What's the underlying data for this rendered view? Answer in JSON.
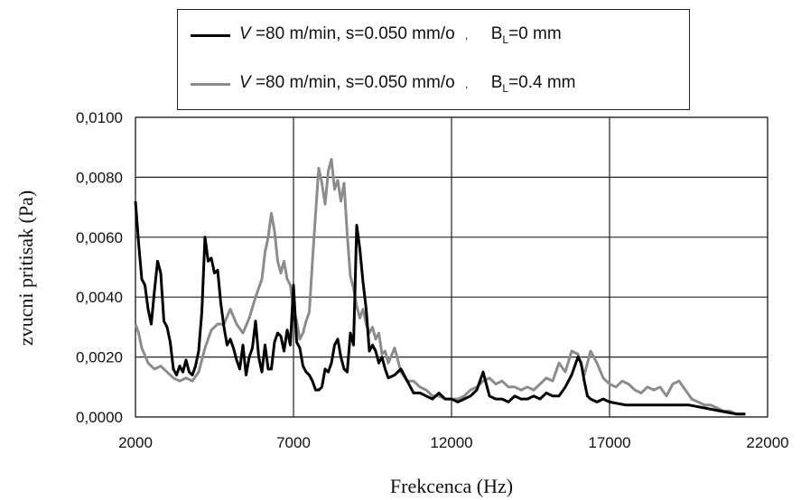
{
  "chart_data": {
    "type": "line",
    "xlabel": "Frekcenca (Hz)",
    "ylabel": "zvucni pritisak (Pa)",
    "xlim": [
      2000,
      22000
    ],
    "ylim": [
      0,
      0.01
    ],
    "x_ticks": [
      2000,
      7000,
      12000,
      17000,
      22000
    ],
    "x_tick_labels": [
      "2000",
      "7000",
      "12000",
      "17000",
      "22000"
    ],
    "y_ticks": [
      0,
      0.002,
      0.004,
      0.006,
      0.008,
      0.01
    ],
    "y_tick_labels": [
      "0,0000",
      "0,0020",
      "0,0040",
      "0,0060",
      "0,0080",
      "0,0100"
    ],
    "grid": "vertical and horizontal",
    "legend_position": "top",
    "series": [
      {
        "name": "V =80 m/min, s=0.050 mm/o , BL=0 mm",
        "color": "#000000",
        "x": [
          2000,
          2100,
          2200,
          2300,
          2400,
          2500,
          2600,
          2700,
          2800,
          2900,
          3000,
          3100,
          3200,
          3300,
          3400,
          3500,
          3600,
          3700,
          3800,
          3900,
          4000,
          4100,
          4200,
          4300,
          4400,
          4500,
          4600,
          4700,
          4800,
          4900,
          5000,
          5100,
          5200,
          5300,
          5400,
          5500,
          5600,
          5700,
          5800,
          5900,
          6000,
          6100,
          6200,
          6300,
          6400,
          6500,
          6600,
          6700,
          6800,
          6900,
          7000,
          7100,
          7200,
          7300,
          7400,
          7500,
          7600,
          7700,
          7800,
          7900,
          8000,
          8100,
          8200,
          8300,
          8400,
          8500,
          8600,
          8700,
          8800,
          8900,
          9000,
          9100,
          9200,
          9300,
          9400,
          9500,
          9600,
          9700,
          9800,
          9900,
          10000,
          10200,
          10400,
          10600,
          10800,
          11000,
          11200,
          11400,
          11600,
          11800,
          12000,
          12200,
          12400,
          12600,
          12800,
          13000,
          13200,
          13400,
          13600,
          13800,
          14000,
          14200,
          14400,
          14600,
          14800,
          15000,
          15200,
          15400,
          15600,
          15800,
          16000,
          16100,
          16200,
          16300,
          16400,
          16600,
          16800,
          17000,
          17500,
          18000,
          18500,
          19000,
          19500,
          20000,
          20500,
          21000,
          21300
        ],
        "y": [
          0.0072,
          0.0058,
          0.0046,
          0.0044,
          0.0036,
          0.0031,
          0.0042,
          0.0052,
          0.0048,
          0.0032,
          0.003,
          0.0025,
          0.0016,
          0.0014,
          0.0017,
          0.0015,
          0.0019,
          0.0015,
          0.0014,
          0.0017,
          0.0022,
          0.0035,
          0.006,
          0.0052,
          0.0053,
          0.0048,
          0.0049,
          0.0038,
          0.003,
          0.0024,
          0.0026,
          0.0023,
          0.0019,
          0.0016,
          0.0024,
          0.0014,
          0.002,
          0.0023,
          0.0032,
          0.002,
          0.0015,
          0.0024,
          0.0016,
          0.0016,
          0.0025,
          0.0028,
          0.0027,
          0.0022,
          0.0029,
          0.0024,
          0.0044,
          0.0025,
          0.0023,
          0.0017,
          0.0015,
          0.0014,
          0.0012,
          0.0009,
          0.0009,
          0.001,
          0.0016,
          0.0015,
          0.0018,
          0.0024,
          0.0026,
          0.002,
          0.0016,
          0.0015,
          0.0028,
          0.0024,
          0.0064,
          0.0056,
          0.0045,
          0.0036,
          0.0022,
          0.0024,
          0.0022,
          0.0018,
          0.002,
          0.0016,
          0.0013,
          0.0014,
          0.0016,
          0.0012,
          0.0008,
          0.0008,
          0.0007,
          0.0006,
          0.0008,
          0.0006,
          0.0006,
          0.0005,
          0.0006,
          0.0007,
          0.0009,
          0.0015,
          0.0007,
          0.0006,
          0.0006,
          0.0005,
          0.0007,
          0.0006,
          0.0006,
          0.0007,
          0.0006,
          0.0008,
          0.0007,
          0.0007,
          0.001,
          0.0014,
          0.002,
          0.0018,
          0.0012,
          0.0007,
          0.0006,
          0.0005,
          0.0006,
          0.0005,
          0.0004,
          0.0004,
          0.0004,
          0.0004,
          0.0004,
          0.0003,
          0.0002,
          0.0001,
          0.0001
        ]
      },
      {
        "name": "V =80 m/min, s=0.050 mm/o , BL=0.4 mm",
        "color": "#8c8c8c",
        "x": [
          2000,
          2100,
          2200,
          2400,
          2600,
          2800,
          3000,
          3200,
          3400,
          3600,
          3800,
          4000,
          4200,
          4400,
          4600,
          4800,
          5000,
          5200,
          5400,
          5600,
          5800,
          6000,
          6100,
          6200,
          6300,
          6400,
          6500,
          6600,
          6700,
          6800,
          6900,
          7000,
          7100,
          7200,
          7300,
          7400,
          7500,
          7600,
          7700,
          7800,
          7900,
          8000,
          8100,
          8200,
          8300,
          8400,
          8500,
          8600,
          8700,
          8800,
          8900,
          9000,
          9100,
          9200,
          9300,
          9400,
          9500,
          9600,
          9700,
          9800,
          9900,
          10000,
          10200,
          10400,
          10600,
          10800,
          11000,
          11200,
          11400,
          11600,
          11800,
          12000,
          12200,
          12400,
          12600,
          12800,
          13000,
          13200,
          13400,
          13600,
          13800,
          14000,
          14200,
          14400,
          14600,
          14800,
          15000,
          15200,
          15400,
          15600,
          15800,
          16000,
          16200,
          16400,
          16600,
          16800,
          17000,
          17200,
          17400,
          17600,
          17800,
          18000,
          18200,
          18400,
          18600,
          18800,
          19000,
          19200,
          19400,
          19600,
          19800,
          20000,
          20200,
          20400,
          20600,
          20800,
          21000,
          21300
        ],
        "y": [
          0.0031,
          0.0028,
          0.0023,
          0.0018,
          0.0016,
          0.0017,
          0.0015,
          0.0013,
          0.0012,
          0.0013,
          0.0012,
          0.0015,
          0.0023,
          0.0029,
          0.0031,
          0.0031,
          0.0036,
          0.0031,
          0.0028,
          0.0033,
          0.004,
          0.0046,
          0.0055,
          0.006,
          0.0068,
          0.0062,
          0.0052,
          0.0048,
          0.0052,
          0.0046,
          0.0044,
          0.0036,
          0.0032,
          0.0026,
          0.0028,
          0.0032,
          0.0035,
          0.0052,
          0.0068,
          0.0083,
          0.0078,
          0.0071,
          0.0082,
          0.0086,
          0.0076,
          0.0079,
          0.0072,
          0.0078,
          0.0061,
          0.0047,
          0.0043,
          0.0037,
          0.0033,
          0.0036,
          0.0031,
          0.0028,
          0.003,
          0.0026,
          0.0028,
          0.0021,
          0.0022,
          0.0018,
          0.0023,
          0.0015,
          0.0012,
          0.0012,
          0.001,
          0.0009,
          0.0007,
          0.0007,
          0.0006,
          0.0006,
          0.0006,
          0.0007,
          0.0009,
          0.001,
          0.0012,
          0.0013,
          0.0011,
          0.0012,
          0.001,
          0.001,
          0.0009,
          0.001,
          0.0009,
          0.0011,
          0.0013,
          0.0012,
          0.0018,
          0.0015,
          0.0022,
          0.0021,
          0.0014,
          0.0022,
          0.0018,
          0.0013,
          0.0011,
          0.001,
          0.0012,
          0.0011,
          0.0009,
          0.0008,
          0.001,
          0.0009,
          0.001,
          0.0007,
          0.0011,
          0.0012,
          0.0009,
          0.0006,
          0.0005,
          0.0004,
          0.0004,
          0.0003,
          0.0002,
          0.0002,
          0.0001,
          0.0001
        ]
      }
    ]
  },
  "legend": {
    "row1": {
      "v": "V",
      "text": " =80 m/min, ",
      "s": "s",
      "s_text": "=0.050 mm/o",
      "sep": ",",
      "b": "B",
      "sub": "L",
      "b_text": "=0 mm"
    },
    "row2": {
      "v": "V",
      "text": " =80 m/min, ",
      "s": "s",
      "s_text": "=0.050 mm/o",
      "sep": ",",
      "b": "B",
      "sub": "L",
      "b_text": "=0.4 mm"
    }
  }
}
